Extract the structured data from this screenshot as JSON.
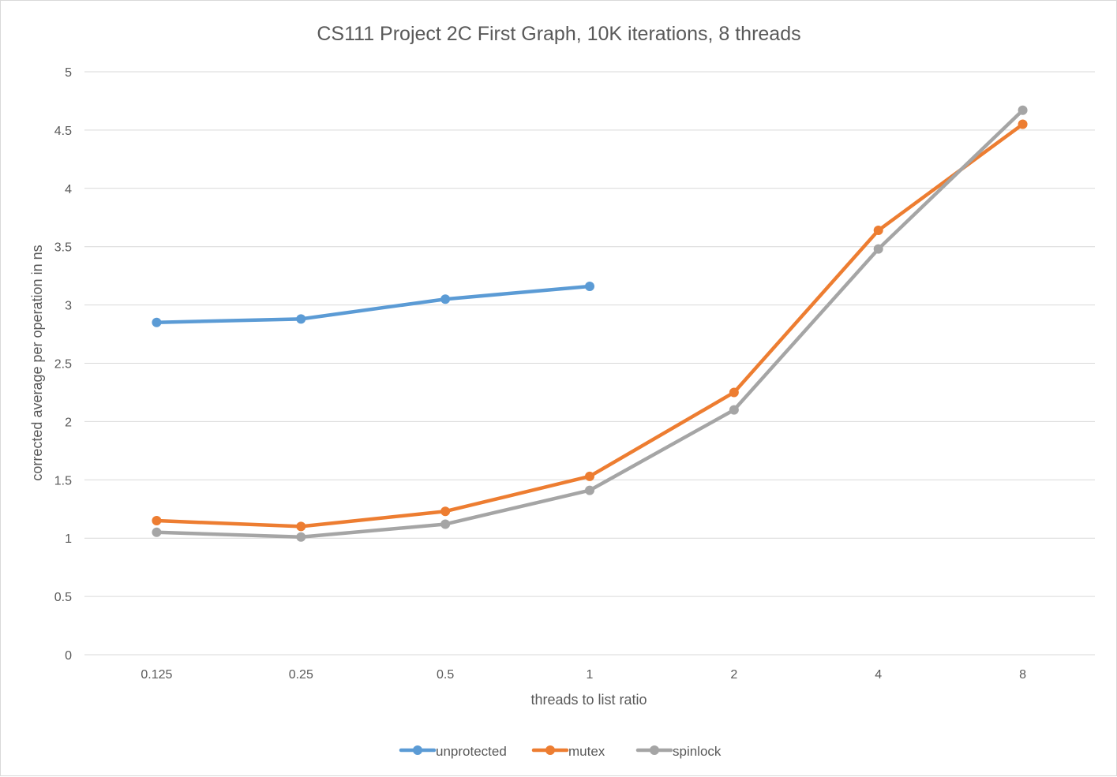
{
  "chart_data": {
    "type": "line",
    "title": "CS111 Project 2C First Graph, 10K iterations, 8 threads",
    "xlabel": "threads to list ratio",
    "ylabel": "corrected average per operation in ns",
    "categories": [
      "0.125",
      "0.25",
      "0.5",
      "1",
      "2",
      "4",
      "8"
    ],
    "ylim": [
      0,
      5
    ],
    "yticks": [
      "0",
      "0.5",
      "1",
      "1.5",
      "2",
      "2.5",
      "3",
      "3.5",
      "4",
      "4.5",
      "5"
    ],
    "grid": true,
    "legend_position": "bottom",
    "series": [
      {
        "name": "unprotected",
        "color": "#5b9bd5",
        "values": [
          2.85,
          2.88,
          3.05,
          3.16,
          null,
          null,
          null
        ]
      },
      {
        "name": "mutex",
        "color": "#ed7d31",
        "values": [
          1.15,
          1.1,
          1.23,
          1.53,
          2.25,
          3.64,
          4.55
        ]
      },
      {
        "name": "spinlock",
        "color": "#a5a5a5",
        "values": [
          1.05,
          1.01,
          1.12,
          1.41,
          2.1,
          3.48,
          4.67
        ]
      }
    ]
  }
}
